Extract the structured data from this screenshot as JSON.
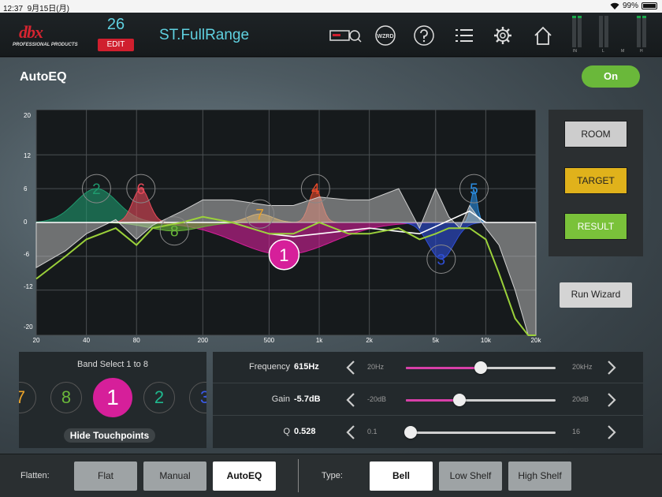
{
  "status_bar": {
    "time": "12:37",
    "date": "9月15日(月)",
    "battery": "99%",
    "battery_level": 0.99
  },
  "header": {
    "logo_text": "dbx",
    "logo_sub": "PROFESSIONAL PRODUCTS",
    "preset_number": "26",
    "edit_label": "EDIT",
    "preset_name": "ST.FullRange",
    "wizard_label": "WZRD",
    "icons": [
      "device-config-icon",
      "wizard-icon",
      "help-icon",
      "list-icon",
      "settings-gear-icon",
      "home-icon"
    ],
    "meter_labels": {
      "in": "IN",
      "l": "L",
      "m": "M",
      "h": "H"
    },
    "meter_levels": [
      0.25,
      0.25,
      0.0,
      0.0,
      0.25,
      0.25
    ]
  },
  "page": {
    "title": "AutoEQ",
    "toggle_label": "On",
    "toggle_color": "#6ab83a"
  },
  "graph": {
    "y_ticks": [
      "20",
      "12",
      "6",
      "0",
      "-6",
      "-12",
      "-20"
    ],
    "x_ticks": [
      "20",
      "40",
      "80",
      "200",
      "500",
      "1k",
      "2k",
      "5k",
      "10k",
      "20k"
    ],
    "ylim": [
      -20,
      20
    ],
    "xlim": [
      20,
      20000
    ],
    "x_scale": "log",
    "grid": true,
    "background": "#161a1c",
    "bands": [
      {
        "label": "1",
        "freq": 615,
        "gain": -5.7,
        "q": 0.528,
        "color": "#d61f9a"
      },
      {
        "label": "2",
        "freq": 46,
        "gain": 6.0,
        "q": 1.2,
        "color": "#1f9a6e"
      },
      {
        "label": "3",
        "freq": 5400,
        "gain": -6.5,
        "q": 2.0,
        "color": "#2f4fd8"
      },
      {
        "label": "4",
        "freq": 950,
        "gain": 6.0,
        "q": 4.0,
        "color": "#e84a2a"
      },
      {
        "label": "5",
        "freq": 8500,
        "gain": 6.0,
        "q": 8.0,
        "color": "#2a8ce0"
      },
      {
        "label": "6",
        "freq": 85,
        "gain": 6.0,
        "q": 3.0,
        "color": "#e84a5a"
      },
      {
        "label": "7",
        "freq": 440,
        "gain": 1.5,
        "q": 2.0,
        "color": "#e8a22a"
      },
      {
        "label": "8",
        "freq": 135,
        "gain": -1.5,
        "q": 1.0,
        "color": "#6ab83a"
      }
    ],
    "room_curve": [
      [
        20,
        -8
      ],
      [
        30,
        -5
      ],
      [
        40,
        -2
      ],
      [
        60,
        0.5
      ],
      [
        80,
        -3
      ],
      [
        100,
        -0.5
      ],
      [
        150,
        2
      ],
      [
        200,
        4
      ],
      [
        300,
        4
      ],
      [
        500,
        3
      ],
      [
        700,
        3
      ],
      [
        1000,
        4.5
      ],
      [
        1500,
        4
      ],
      [
        2000,
        4
      ],
      [
        3000,
        6
      ],
      [
        4000,
        -1
      ],
      [
        5000,
        6
      ],
      [
        6000,
        1
      ],
      [
        7000,
        -1
      ],
      [
        8000,
        3
      ],
      [
        10000,
        -1
      ],
      [
        12000,
        -4
      ],
      [
        15000,
        -12
      ],
      [
        18000,
        -20
      ],
      [
        20000,
        -20
      ]
    ],
    "result_curve": [
      [
        20,
        -10
      ],
      [
        30,
        -6
      ],
      [
        40,
        -3
      ],
      [
        60,
        -1
      ],
      [
        80,
        -4
      ],
      [
        100,
        -1
      ],
      [
        150,
        0
      ],
      [
        200,
        1
      ],
      [
        300,
        0
      ],
      [
        500,
        -2
      ],
      [
        700,
        -2
      ],
      [
        1000,
        0
      ],
      [
        1500,
        -2
      ],
      [
        2000,
        -2
      ],
      [
        3000,
        -1
      ],
      [
        4000,
        -3
      ],
      [
        5000,
        -2
      ],
      [
        6000,
        -1
      ],
      [
        7000,
        -1
      ],
      [
        8000,
        -1
      ],
      [
        10000,
        -3
      ],
      [
        12000,
        -9
      ],
      [
        15000,
        -17
      ],
      [
        18000,
        -20
      ],
      [
        20000,
        -20
      ]
    ],
    "target_curve": [
      [
        20,
        0
      ],
      [
        100,
        0
      ],
      [
        300,
        0
      ],
      [
        500,
        -2
      ],
      [
        700,
        -2.5
      ],
      [
        1000,
        -2
      ],
      [
        2000,
        -1
      ],
      [
        4000,
        -2
      ],
      [
        8000,
        2
      ],
      [
        10000,
        0
      ],
      [
        20000,
        0
      ]
    ]
  },
  "side_buttons": [
    {
      "label": "ROOM",
      "bg": "#cdcdcd",
      "fg": "#222"
    },
    {
      "label": "TARGET",
      "bg": "#e0b21b",
      "fg": "#222"
    },
    {
      "label": "RESULT",
      "bg": "#7ac23a",
      "fg": "#fff"
    }
  ],
  "run_wizard_label": "Run Wizard",
  "band_select": {
    "title": "Band Select 1 to 8",
    "items": [
      {
        "label": "7",
        "color": "#e8a22a"
      },
      {
        "label": "8",
        "color": "#6ab83a"
      },
      {
        "label": "1",
        "color": "#ffffff"
      },
      {
        "label": "2",
        "color": "#1fb88e"
      },
      {
        "label": "3",
        "color": "#3a5ae8"
      }
    ],
    "selected_index": 2,
    "hide_label": "Hide Touchpoints"
  },
  "params": [
    {
      "label": "Frequency",
      "value": "615Hz",
      "min_label": "20Hz",
      "max_label": "20kHz",
      "position": 0.5,
      "fill": true
    },
    {
      "label": "Gain",
      "value": "-5.7dB",
      "min_label": "-20dB",
      "max_label": "20dB",
      "position": 0.36,
      "fill": true
    },
    {
      "label": "Q",
      "value": "0.528",
      "min_label": "0.1",
      "max_label": "16",
      "position": 0.03,
      "fill": false
    }
  ],
  "toolbar": {
    "flatten_label": "Flatten:",
    "flatten_buttons": [
      "Flat",
      "Manual",
      "AutoEQ"
    ],
    "flatten_active": 2,
    "type_label": "Type:",
    "type_buttons": [
      "Bell",
      "Low Shelf",
      "High Shelf"
    ],
    "type_active": 0
  }
}
